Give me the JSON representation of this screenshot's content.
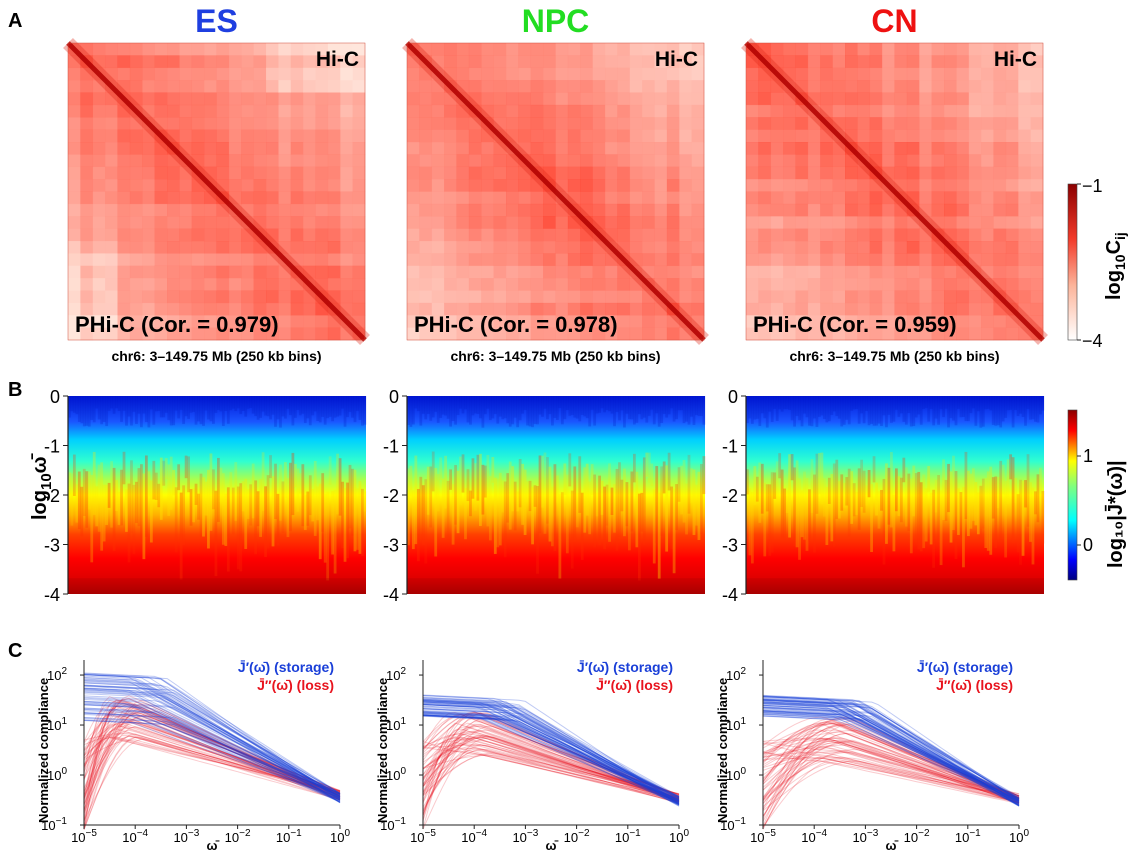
{
  "colors": {
    "ES": "#1f3fe0",
    "NPC": "#22dd22",
    "CN": "#ee1111",
    "storage": "#1a3fd8",
    "loss": "#e8141e",
    "hic_high": "#8b0000",
    "hic_low": "#ffffff"
  },
  "panel_letters": {
    "a": "A",
    "b": "B",
    "c": "C"
  },
  "conditions": [
    {
      "name": "ES",
      "color": "#1f3fe0",
      "hic_label": "Hi-C",
      "phic_label": "PHi-C (Cor. = 0.979)",
      "chr_label": "chr6: 3–149.75 Mb (250 kb bins)"
    },
    {
      "name": "NPC",
      "color": "#22dd22",
      "hic_label": "Hi-C",
      "phic_label": "PHi-C (Cor. = 0.978)",
      "chr_label": "chr6: 3–149.75 Mb (250 kb bins)"
    },
    {
      "name": "CN",
      "color": "#ee1111",
      "hic_label": "Hi-C",
      "phic_label": "PHi-C (Cor. = 0.959)",
      "chr_label": "chr6: 3–149.75 Mb (250 kb bins)"
    }
  ],
  "chart_data": [
    {
      "type": "heatmap",
      "panel": "A",
      "colorbar": {
        "label_base": "log",
        "label_sub": "10",
        "label_var": "C",
        "label_var_sub": "ij",
        "ticks": [
          "−1",
          "−4"
        ],
        "range": [
          -4,
          -1
        ],
        "colormap": "white-to-darkred"
      }
    },
    {
      "type": "heatmap",
      "panel": "B",
      "ylabel_base": "log",
      "ylabel_sub": "10",
      "ylabel_var": "ω̄",
      "ylim": [
        -4,
        0
      ],
      "y_ticks": [
        "0",
        "-1",
        "-2",
        "-3",
        "-4"
      ],
      "colorbar": {
        "label": "log₁₀|J̄*(ω̄)|",
        "ticks": [
          "1",
          "0"
        ],
        "range": [
          -0.5,
          1.4
        ],
        "colormap": "jet"
      }
    },
    {
      "type": "line",
      "panel": "C",
      "ylabel": "Normalized compliance",
      "xlabel": "ω̄",
      "x_scale": "log",
      "y_scale": "log",
      "xlim": [
        1e-05,
        1
      ],
      "ylim": [
        0.1,
        200
      ],
      "x_ticks": [
        {
          "base": "10",
          "exp": "−5"
        },
        {
          "base": "10",
          "exp": "−4"
        },
        {
          "base": "10",
          "exp": "−3"
        },
        {
          "base": "10",
          "exp": "−2"
        },
        {
          "base": "10",
          "exp": "−1"
        },
        {
          "base": "10",
          "exp": "0"
        }
      ],
      "y_ticks": [
        {
          "base": "10",
          "exp": "−1"
        },
        {
          "base": "10",
          "exp": "0"
        },
        {
          "base": "10",
          "exp": "1"
        },
        {
          "base": "10",
          "exp": "2"
        }
      ],
      "legend": [
        {
          "label": "J̄′(ω̄) (storage)",
          "color": "#1a3fd8"
        },
        {
          "label": "J̄″(ω̄) (loss)",
          "color": "#e8141e"
        }
      ],
      "legend_position": "top-right",
      "series_summary": [
        {
          "condition": "ES",
          "storage_low_freq_range": [
            12,
            110
          ],
          "loss_peak_freq": 7e-05,
          "loss_peak_range": [
            0.5,
            40
          ],
          "high_freq_value": 0.35
        },
        {
          "condition": "NPC",
          "storage_low_freq_range": [
            15,
            40
          ],
          "loss_peak_freq": 0.0001,
          "loss_peak_range": [
            0.5,
            20
          ],
          "high_freq_value": 0.3
        },
        {
          "condition": "CN",
          "storage_low_freq_range": [
            15,
            40
          ],
          "loss_peak_freq": 0.0003,
          "loss_peak_range": [
            0.5,
            15
          ],
          "high_freq_value": 0.3
        }
      ]
    }
  ]
}
